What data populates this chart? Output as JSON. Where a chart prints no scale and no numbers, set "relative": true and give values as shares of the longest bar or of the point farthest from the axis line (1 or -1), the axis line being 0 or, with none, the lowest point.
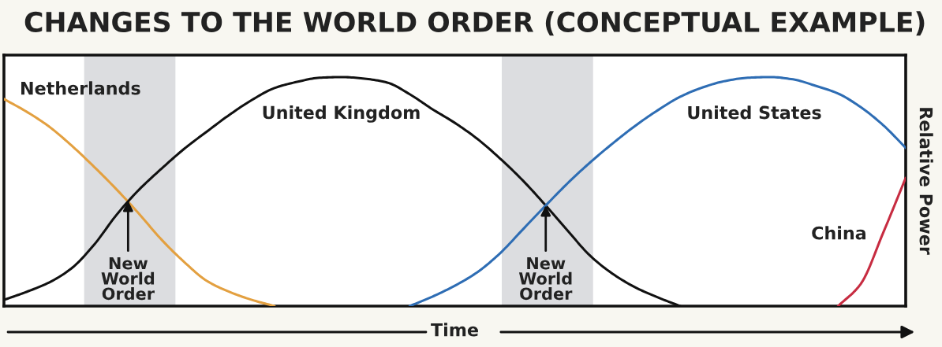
{
  "chart_data": {
    "type": "line",
    "relative": true,
    "title": "CHANGES TO THE WORLD ORDER (CONCEPTUAL EXAMPLE)",
    "xlabel": "Time",
    "ylabel": "Relative Power",
    "categories": [
      null,
      null,
      null,
      null,
      null,
      null,
      null,
      null,
      null,
      null,
      null,
      null,
      null,
      null,
      null,
      null,
      null,
      null,
      null,
      null,
      null,
      null,
      null,
      null,
      null,
      null,
      null,
      null,
      null,
      null,
      null,
      null,
      null,
      null,
      null,
      null,
      null,
      null,
      null,
      null,
      null
    ],
    "series": [
      {
        "name": "Netherlands",
        "color": "#e3a040",
        "values": [
          0.904,
          0.849,
          0.784,
          0.701,
          0.608,
          0.509,
          0.402,
          0.289,
          0.192,
          0.11,
          0.062,
          0.027,
          0,
          null,
          null,
          null,
          null,
          null,
          null,
          null,
          null,
          null,
          null,
          null,
          null,
          null,
          null,
          null,
          null,
          null,
          null,
          null,
          null,
          null,
          null,
          null,
          null,
          null,
          null,
          null,
          null
        ]
      },
      {
        "name": "United Kingdom",
        "color": "#111111",
        "values": [
          0.027,
          0.062,
          0.103,
          0.165,
          0.268,
          0.399,
          0.509,
          0.601,
          0.687,
          0.762,
          0.835,
          0.9,
          0.952,
          0.979,
          0.997,
          1,
          0.993,
          0.976,
          0.925,
          0.86,
          0.8,
          0.73,
          0.645,
          0.55,
          0.443,
          0.33,
          0.22,
          0.141,
          0.082,
          0.038,
          0,
          null,
          null,
          null,
          null,
          null,
          null,
          null,
          null,
          null,
          null
        ]
      },
      {
        "name": "United States",
        "color": "#2e6db4",
        "values": [
          null,
          null,
          null,
          null,
          null,
          null,
          null,
          null,
          null,
          null,
          null,
          null,
          null,
          null,
          null,
          null,
          null,
          null,
          0,
          0.041,
          0.089,
          0.148,
          0.23,
          0.333,
          0.436,
          0.536,
          0.627,
          0.71,
          0.787,
          0.855,
          0.914,
          0.955,
          0.983,
          0.997,
          1,
          0.99,
          0.962,
          0.928,
          0.869,
          0.79,
          0.691
        ]
      },
      {
        "name": "China",
        "color": "#c72c41",
        "values": [
          null,
          null,
          null,
          null,
          null,
          null,
          null,
          null,
          null,
          null,
          null,
          null,
          null,
          null,
          null,
          null,
          null,
          null,
          null,
          null,
          null,
          null,
          null,
          null,
          null,
          null,
          null,
          null,
          null,
          null,
          null,
          null,
          null,
          null,
          null,
          null,
          null,
          0,
          0.096,
          0.32,
          0.56
        ]
      }
    ],
    "annotations": [
      {
        "text": "New\nWorld\nOrder",
        "y": 0.46
      },
      {
        "text": "New\nWorld\nOrder",
        "y": 0.44
      }
    ],
    "marker": "none",
    "line_style": "solid"
  }
}
